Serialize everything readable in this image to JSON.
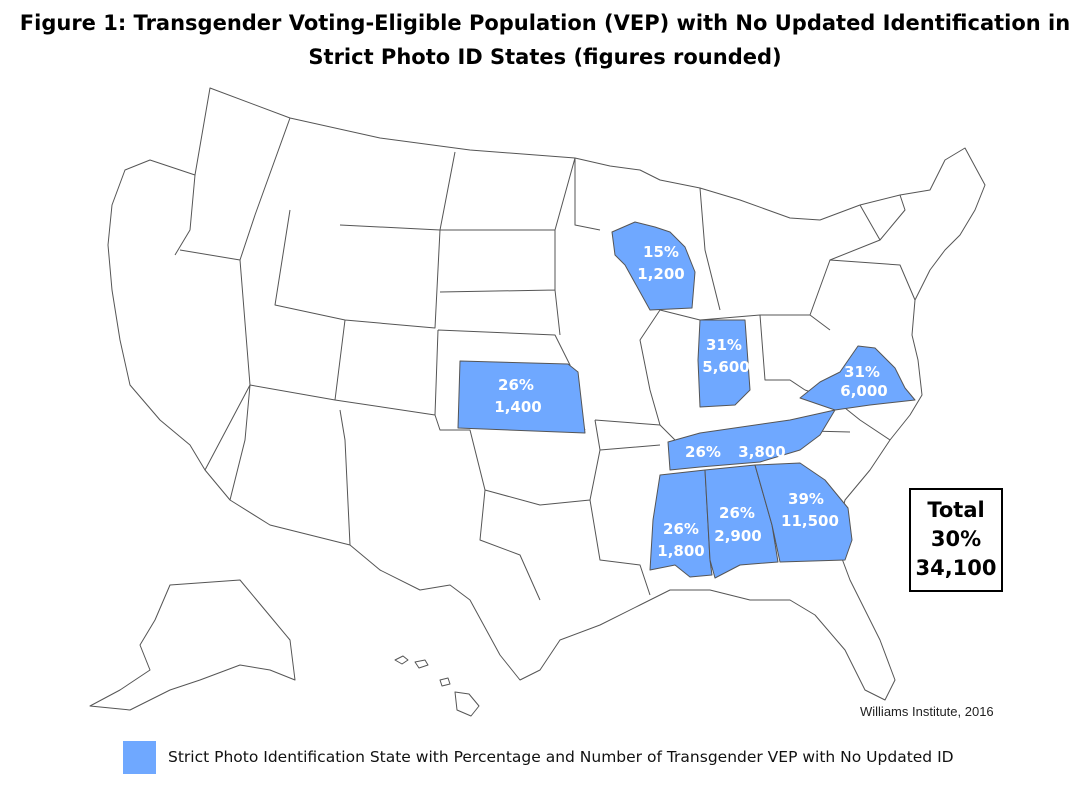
{
  "title": {
    "line1": "Figure 1: Transgender Voting-Eligible Population (VEP) with No Updated Identification in",
    "line2": "Strict Photo ID States (figures rounded)"
  },
  "colors": {
    "highlight": "#6fa8ff",
    "border": "#555555",
    "land": "#ffffff"
  },
  "states": [
    {
      "id": "wisconsin",
      "name": "Wisconsin",
      "percent": "15%",
      "number": "1,200"
    },
    {
      "id": "indiana",
      "name": "Indiana",
      "percent": "31%",
      "number": "5,600"
    },
    {
      "id": "kansas",
      "name": "Kansas",
      "percent": "26%",
      "number": "1,400"
    },
    {
      "id": "virginia",
      "name": "Virginia",
      "percent": "31%",
      "number": "6,000"
    },
    {
      "id": "tennessee",
      "name": "Tennessee",
      "percent": "26%",
      "number": "3,800"
    },
    {
      "id": "mississippi",
      "name": "Mississippi",
      "percent": "26%",
      "number": "1,800"
    },
    {
      "id": "alabama",
      "name": "Alabama",
      "percent": "26%",
      "number": "2,900"
    },
    {
      "id": "georgia",
      "name": "Georgia",
      "percent": "39%",
      "number": "11,500"
    }
  ],
  "total": {
    "heading": "Total",
    "percent": "30%",
    "number": "34,100"
  },
  "credit": "Williams Institute, 2016",
  "legend": {
    "label": "Strict Photo Identification State with Percentage and Number of Transgender VEP with No Updated ID"
  }
}
